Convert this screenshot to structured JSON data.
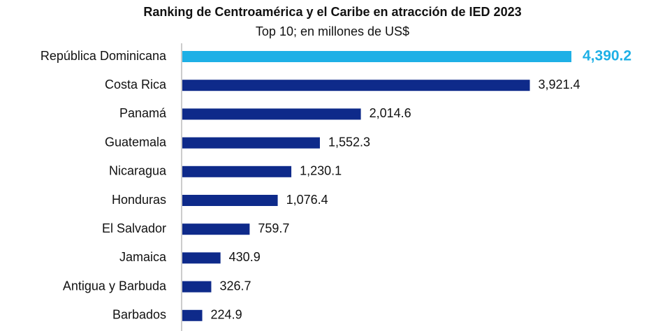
{
  "chart_data": {
    "type": "bar",
    "orientation": "horizontal",
    "title": "Ranking de Centroamérica y el Caribe en atracción de IED 2023",
    "subtitle": "Top 10; en millones de US$",
    "categories": [
      "República Dominicana",
      "Costa Rica",
      "Panamá",
      "Guatemala",
      "Nicaragua",
      "Honduras",
      "El Salvador",
      "Jamaica",
      "Antigua y Barbuda",
      "Barbados"
    ],
    "values": [
      4390.2,
      3921.4,
      2014.6,
      1552.3,
      1230.1,
      1076.4,
      759.7,
      430.9,
      326.7,
      224.9
    ],
    "value_labels": [
      "4,390.2",
      "3,921.4",
      "2,014.6",
      "1,552.3",
      "1,230.1",
      "1,076.4",
      "759.7",
      "430.9",
      "326.7",
      "224.9"
    ],
    "colors": [
      "#1eb0e6",
      "#0e2a8a",
      "#0e2a8a",
      "#0e2a8a",
      "#0e2a8a",
      "#0e2a8a",
      "#0e2a8a",
      "#0e2a8a",
      "#0e2a8a",
      "#0e2a8a"
    ]
  }
}
